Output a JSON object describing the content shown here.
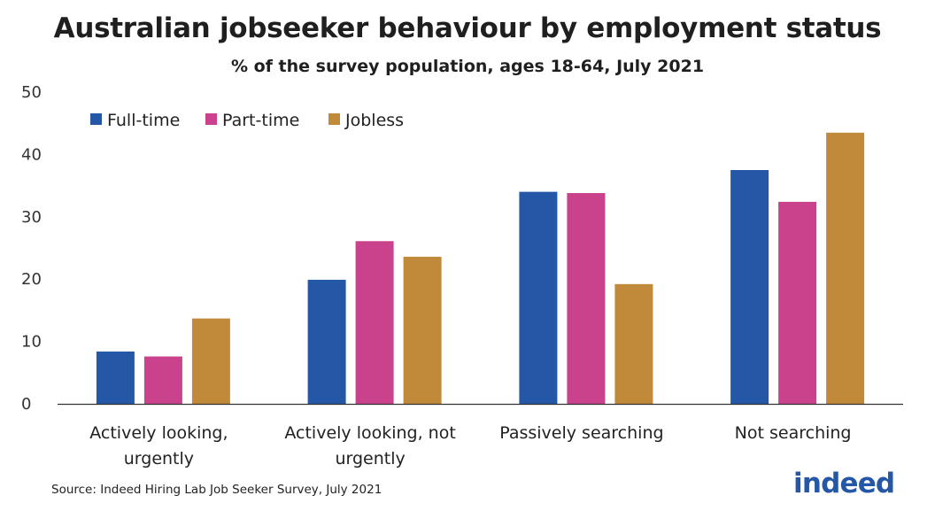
{
  "title": "Australian jobseeker behaviour by employment status",
  "subtitle": "% of the survey population,  ages 18-64, July 2021",
  "source": "Source: Indeed Hiring Lab Job Seeker Survey, July 2021",
  "logo_text": "indeed",
  "colors": {
    "full_time": "#2557a7",
    "part_time": "#c9428b",
    "jobless": "#c18a3a",
    "axis": "#333333",
    "logo": "#2557a7"
  },
  "chart_data": {
    "type": "bar",
    "title": "Australian jobseeker behaviour by employment status",
    "subtitle": "% of the survey population,  ages 18-64, July 2021",
    "xlabel": "",
    "ylabel": "",
    "ylim": [
      0,
      50
    ],
    "yticks": [
      0,
      10,
      20,
      30,
      40,
      50
    ],
    "grid": false,
    "legend_position": "top-left",
    "categories": [
      [
        "Actively looking,",
        "urgently"
      ],
      [
        "Actively looking, not",
        "urgently"
      ],
      [
        "Passively searching"
      ],
      [
        "Not searching"
      ]
    ],
    "series": [
      {
        "name": "Full-time",
        "color": "#2557a7",
        "values": [
          8.4,
          19.9,
          34.0,
          37.5
        ]
      },
      {
        "name": "Part-time",
        "color": "#c9428b",
        "values": [
          7.6,
          26.1,
          33.8,
          32.4
        ]
      },
      {
        "name": "Jobless",
        "color": "#c18a3a",
        "values": [
          13.7,
          23.6,
          19.2,
          43.5
        ]
      }
    ]
  }
}
